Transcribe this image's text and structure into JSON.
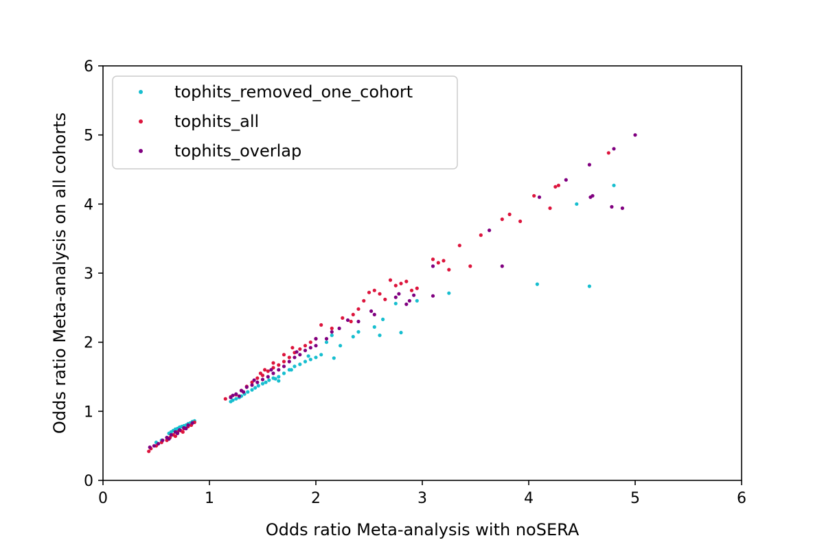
{
  "chart_data": {
    "type": "scatter",
    "xlabel": "Odds ratio Meta-analysis with noSERA",
    "ylabel": "Odds ratio Meta-analysis on all cohorts",
    "xlim": [
      0,
      6
    ],
    "ylim": [
      0,
      6
    ],
    "xticks": [
      "0",
      "1",
      "2",
      "3",
      "4",
      "5",
      "6"
    ],
    "yticks": [
      "0",
      "1",
      "2",
      "3",
      "4",
      "5",
      "6"
    ],
    "grid": false,
    "legend_position": "top-left",
    "series": [
      {
        "name": "tophits_removed_one_cohort",
        "color": "#17becf",
        "points": [
          [
            0.5,
            0.55
          ],
          [
            0.55,
            0.58
          ],
          [
            0.6,
            0.62
          ],
          [
            0.62,
            0.68
          ],
          [
            0.64,
            0.7
          ],
          [
            0.66,
            0.72
          ],
          [
            0.68,
            0.74
          ],
          [
            0.7,
            0.75
          ],
          [
            0.72,
            0.77
          ],
          [
            0.74,
            0.78
          ],
          [
            0.76,
            0.79
          ],
          [
            0.78,
            0.8
          ],
          [
            0.8,
            0.82
          ],
          [
            0.82,
            0.83
          ],
          [
            0.84,
            0.85
          ],
          [
            0.86,
            0.86
          ],
          [
            0.65,
            0.66
          ],
          [
            0.7,
            0.7
          ],
          [
            1.2,
            1.14
          ],
          [
            1.22,
            1.16
          ],
          [
            1.25,
            1.18
          ],
          [
            1.28,
            1.2
          ],
          [
            1.3,
            1.22
          ],
          [
            1.33,
            1.25
          ],
          [
            1.36,
            1.28
          ],
          [
            1.4,
            1.31
          ],
          [
            1.43,
            1.34
          ],
          [
            1.46,
            1.37
          ],
          [
            1.5,
            1.4
          ],
          [
            1.53,
            1.42
          ],
          [
            1.56,
            1.45
          ],
          [
            1.6,
            1.48
          ],
          [
            1.65,
            1.5
          ],
          [
            1.7,
            1.55
          ],
          [
            1.75,
            1.6
          ],
          [
            1.8,
            1.65
          ],
          [
            1.85,
            1.68
          ],
          [
            1.9,
            1.72
          ],
          [
            1.95,
            1.75
          ],
          [
            2.0,
            1.78
          ],
          [
            2.05,
            1.82
          ],
          [
            1.65,
            1.44
          ],
          [
            1.62,
            1.47
          ],
          [
            1.77,
            1.6
          ],
          [
            1.93,
            1.8
          ],
          [
            2.1,
            2.0
          ],
          [
            2.15,
            2.1
          ],
          [
            2.17,
            1.77
          ],
          [
            2.23,
            1.95
          ],
          [
            2.35,
            2.08
          ],
          [
            2.4,
            2.15
          ],
          [
            2.55,
            2.22
          ],
          [
            2.6,
            2.1
          ],
          [
            2.63,
            2.33
          ],
          [
            2.8,
            2.14
          ],
          [
            2.75,
            2.56
          ],
          [
            2.95,
            2.6
          ],
          [
            3.25,
            2.71
          ],
          [
            4.08,
            2.84
          ],
          [
            4.57,
            2.81
          ],
          [
            4.45,
            4.0
          ],
          [
            4.8,
            4.27
          ]
        ]
      },
      {
        "name": "tophits_all",
        "color": "#dc143c",
        "points": [
          [
            0.43,
            0.42
          ],
          [
            0.45,
            0.46
          ],
          [
            0.5,
            0.5
          ],
          [
            0.55,
            0.55
          ],
          [
            0.6,
            0.58
          ],
          [
            0.63,
            0.62
          ],
          [
            0.66,
            0.66
          ],
          [
            0.7,
            0.7
          ],
          [
            0.73,
            0.72
          ],
          [
            0.76,
            0.75
          ],
          [
            0.8,
            0.78
          ],
          [
            0.83,
            0.8
          ],
          [
            0.86,
            0.84
          ],
          [
            0.68,
            0.64
          ],
          [
            0.75,
            0.7
          ],
          [
            1.15,
            1.18
          ],
          [
            1.2,
            1.21
          ],
          [
            1.25,
            1.24
          ],
          [
            1.3,
            1.3
          ],
          [
            1.35,
            1.36
          ],
          [
            1.4,
            1.42
          ],
          [
            1.45,
            1.48
          ],
          [
            1.5,
            1.52
          ],
          [
            1.55,
            1.58
          ],
          [
            1.6,
            1.63
          ],
          [
            1.65,
            1.67
          ],
          [
            1.7,
            1.72
          ],
          [
            1.75,
            1.78
          ],
          [
            1.8,
            1.85
          ],
          [
            1.85,
            1.9
          ],
          [
            1.9,
            1.95
          ],
          [
            1.95,
            2.0
          ],
          [
            2.0,
            2.05
          ],
          [
            1.48,
            1.55
          ],
          [
            1.52,
            1.6
          ],
          [
            1.6,
            1.7
          ],
          [
            1.7,
            1.82
          ],
          [
            1.78,
            1.92
          ],
          [
            2.05,
            2.25
          ],
          [
            2.15,
            2.2
          ],
          [
            2.25,
            2.35
          ],
          [
            2.35,
            2.4
          ],
          [
            2.4,
            2.48
          ],
          [
            2.45,
            2.6
          ],
          [
            2.5,
            2.72
          ],
          [
            2.55,
            2.75
          ],
          [
            2.6,
            2.7
          ],
          [
            2.65,
            2.62
          ],
          [
            2.7,
            2.9
          ],
          [
            2.75,
            2.82
          ],
          [
            2.8,
            2.85
          ],
          [
            2.85,
            2.88
          ],
          [
            2.9,
            2.75
          ],
          [
            2.95,
            2.78
          ],
          [
            2.33,
            2.3
          ],
          [
            3.1,
            3.2
          ],
          [
            3.15,
            3.15
          ],
          [
            3.2,
            3.18
          ],
          [
            3.25,
            3.05
          ],
          [
            3.35,
            3.4
          ],
          [
            3.45,
            3.1
          ],
          [
            3.55,
            3.55
          ],
          [
            3.75,
            3.78
          ],
          [
            3.82,
            3.85
          ],
          [
            3.92,
            3.75
          ],
          [
            4.2,
            3.94
          ],
          [
            4.28,
            4.27
          ],
          [
            4.25,
            4.25
          ],
          [
            4.75,
            4.74
          ],
          [
            4.05,
            4.12
          ]
        ]
      },
      {
        "name": "tophits_overlap",
        "color": "#800080",
        "points": [
          [
            0.44,
            0.48
          ],
          [
            0.48,
            0.5
          ],
          [
            0.52,
            0.53
          ],
          [
            0.56,
            0.58
          ],
          [
            0.6,
            0.62
          ],
          [
            0.64,
            0.66
          ],
          [
            0.68,
            0.7
          ],
          [
            0.72,
            0.73
          ],
          [
            0.76,
            0.76
          ],
          [
            0.8,
            0.8
          ],
          [
            0.84,
            0.83
          ],
          [
            0.7,
            0.68
          ],
          [
            0.78,
            0.75
          ],
          [
            0.62,
            0.6
          ],
          [
            1.2,
            1.2
          ],
          [
            1.25,
            1.25
          ],
          [
            1.3,
            1.3
          ],
          [
            1.35,
            1.35
          ],
          [
            1.4,
            1.38
          ],
          [
            1.45,
            1.42
          ],
          [
            1.5,
            1.46
          ],
          [
            1.55,
            1.5
          ],
          [
            1.6,
            1.55
          ],
          [
            1.65,
            1.6
          ],
          [
            1.7,
            1.65
          ],
          [
            1.75,
            1.72
          ],
          [
            1.8,
            1.78
          ],
          [
            1.85,
            1.82
          ],
          [
            1.9,
            1.88
          ],
          [
            1.95,
            1.92
          ],
          [
            2.0,
            1.95
          ],
          [
            2.0,
            2.05
          ],
          [
            1.32,
            1.28
          ],
          [
            1.42,
            1.45
          ],
          [
            1.58,
            1.6
          ],
          [
            1.82,
            1.86
          ],
          [
            1.22,
            1.23
          ],
          [
            1.28,
            1.22
          ],
          [
            2.1,
            2.05
          ],
          [
            2.15,
            2.15
          ],
          [
            2.22,
            2.2
          ],
          [
            2.3,
            2.32
          ],
          [
            2.4,
            2.3
          ],
          [
            2.52,
            2.45
          ],
          [
            2.55,
            2.4
          ],
          [
            2.75,
            2.65
          ],
          [
            2.78,
            2.7
          ],
          [
            2.85,
            2.55
          ],
          [
            2.88,
            2.6
          ],
          [
            2.92,
            2.68
          ],
          [
            3.1,
            3.1
          ],
          [
            3.1,
            2.67
          ],
          [
            3.63,
            3.62
          ],
          [
            3.75,
            3.1
          ],
          [
            4.1,
            4.1
          ],
          [
            4.35,
            4.35
          ],
          [
            4.57,
            4.57
          ],
          [
            4.6,
            4.12
          ],
          [
            4.8,
            4.8
          ],
          [
            4.78,
            3.96
          ],
          [
            4.88,
            3.94
          ],
          [
            5.0,
            5.0
          ],
          [
            4.58,
            4.1
          ]
        ]
      }
    ]
  }
}
